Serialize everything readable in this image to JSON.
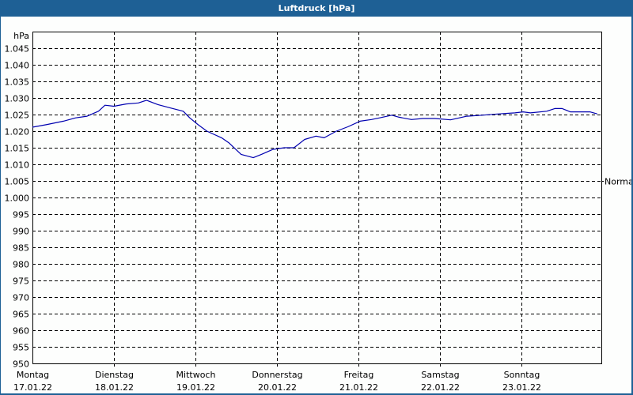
{
  "window": {
    "title": "Luftdruck [hPa]"
  },
  "chart_data": {
    "type": "line",
    "title": "Luftdruck [hPa]",
    "ylabel": "hPa",
    "xlabel": "",
    "ylim": [
      950,
      1050
    ],
    "y_ticks": [
      950,
      955,
      960,
      965,
      970,
      975,
      980,
      985,
      990,
      995,
      1000,
      1005,
      1010,
      1015,
      1020,
      1025,
      1030,
      1035,
      1040,
      1045
    ],
    "y_tick_labels": [
      "950",
      "955",
      "960",
      "965",
      "970",
      "975",
      "980",
      "985",
      "990",
      "995",
      "1.000",
      "1.005",
      "1.010",
      "1.015",
      "1.020",
      "1.025",
      "1.030",
      "1.035",
      "1.040",
      "1.045"
    ],
    "x_ticks": [
      {
        "day": "Montag",
        "date": "17.01.22"
      },
      {
        "day": "Dienstag",
        "date": "18.01.22"
      },
      {
        "day": "Mittwoch",
        "date": "19.01.22"
      },
      {
        "day": "Donnerstag",
        "date": "20.01.22"
      },
      {
        "day": "Freitag",
        "date": "21.01.22"
      },
      {
        "day": "Samstag",
        "date": "22.01.22"
      },
      {
        "day": "Sonntag",
        "date": "23.01.22"
      }
    ],
    "reference_line": {
      "label": "Normal",
      "value": 1005
    },
    "grid": true,
    "legend": "none",
    "series": [
      {
        "name": "Luftdruck",
        "color": "#0000b0",
        "x_days": [
          0.0,
          0.18,
          0.38,
          0.53,
          0.67,
          0.81,
          0.89,
          1.0,
          1.15,
          1.3,
          1.4,
          1.54,
          1.69,
          1.85,
          1.93,
          2.03,
          2.14,
          2.32,
          2.41,
          2.56,
          2.71,
          2.81,
          2.95,
          3.09,
          3.21,
          3.34,
          3.48,
          3.58,
          3.73,
          3.87,
          4.02,
          4.16,
          4.26,
          4.41,
          4.5,
          4.65,
          4.79,
          4.94,
          5.13,
          5.33,
          5.52,
          5.72,
          5.92,
          6.02,
          6.11,
          6.31,
          6.41,
          6.5,
          6.6,
          6.84,
          6.93
        ],
        "values": [
          1021.2,
          1022.0,
          1023.0,
          1024.0,
          1024.5,
          1026.0,
          1027.8,
          1027.5,
          1028.2,
          1028.5,
          1029.3,
          1028.0,
          1027.0,
          1026.0,
          1024.0,
          1022.0,
          1020.0,
          1018.0,
          1016.5,
          1013.0,
          1012.0,
          1013.0,
          1014.5,
          1015.0,
          1015.0,
          1017.5,
          1018.5,
          1018.0,
          1020.0,
          1021.3,
          1023.0,
          1023.5,
          1024.0,
          1024.8,
          1024.2,
          1023.5,
          1023.8,
          1023.8,
          1023.4,
          1024.5,
          1024.8,
          1025.2,
          1025.5,
          1025.8,
          1025.5,
          1026.0,
          1026.8,
          1026.8,
          1025.8,
          1025.8,
          1025.2
        ]
      }
    ]
  }
}
